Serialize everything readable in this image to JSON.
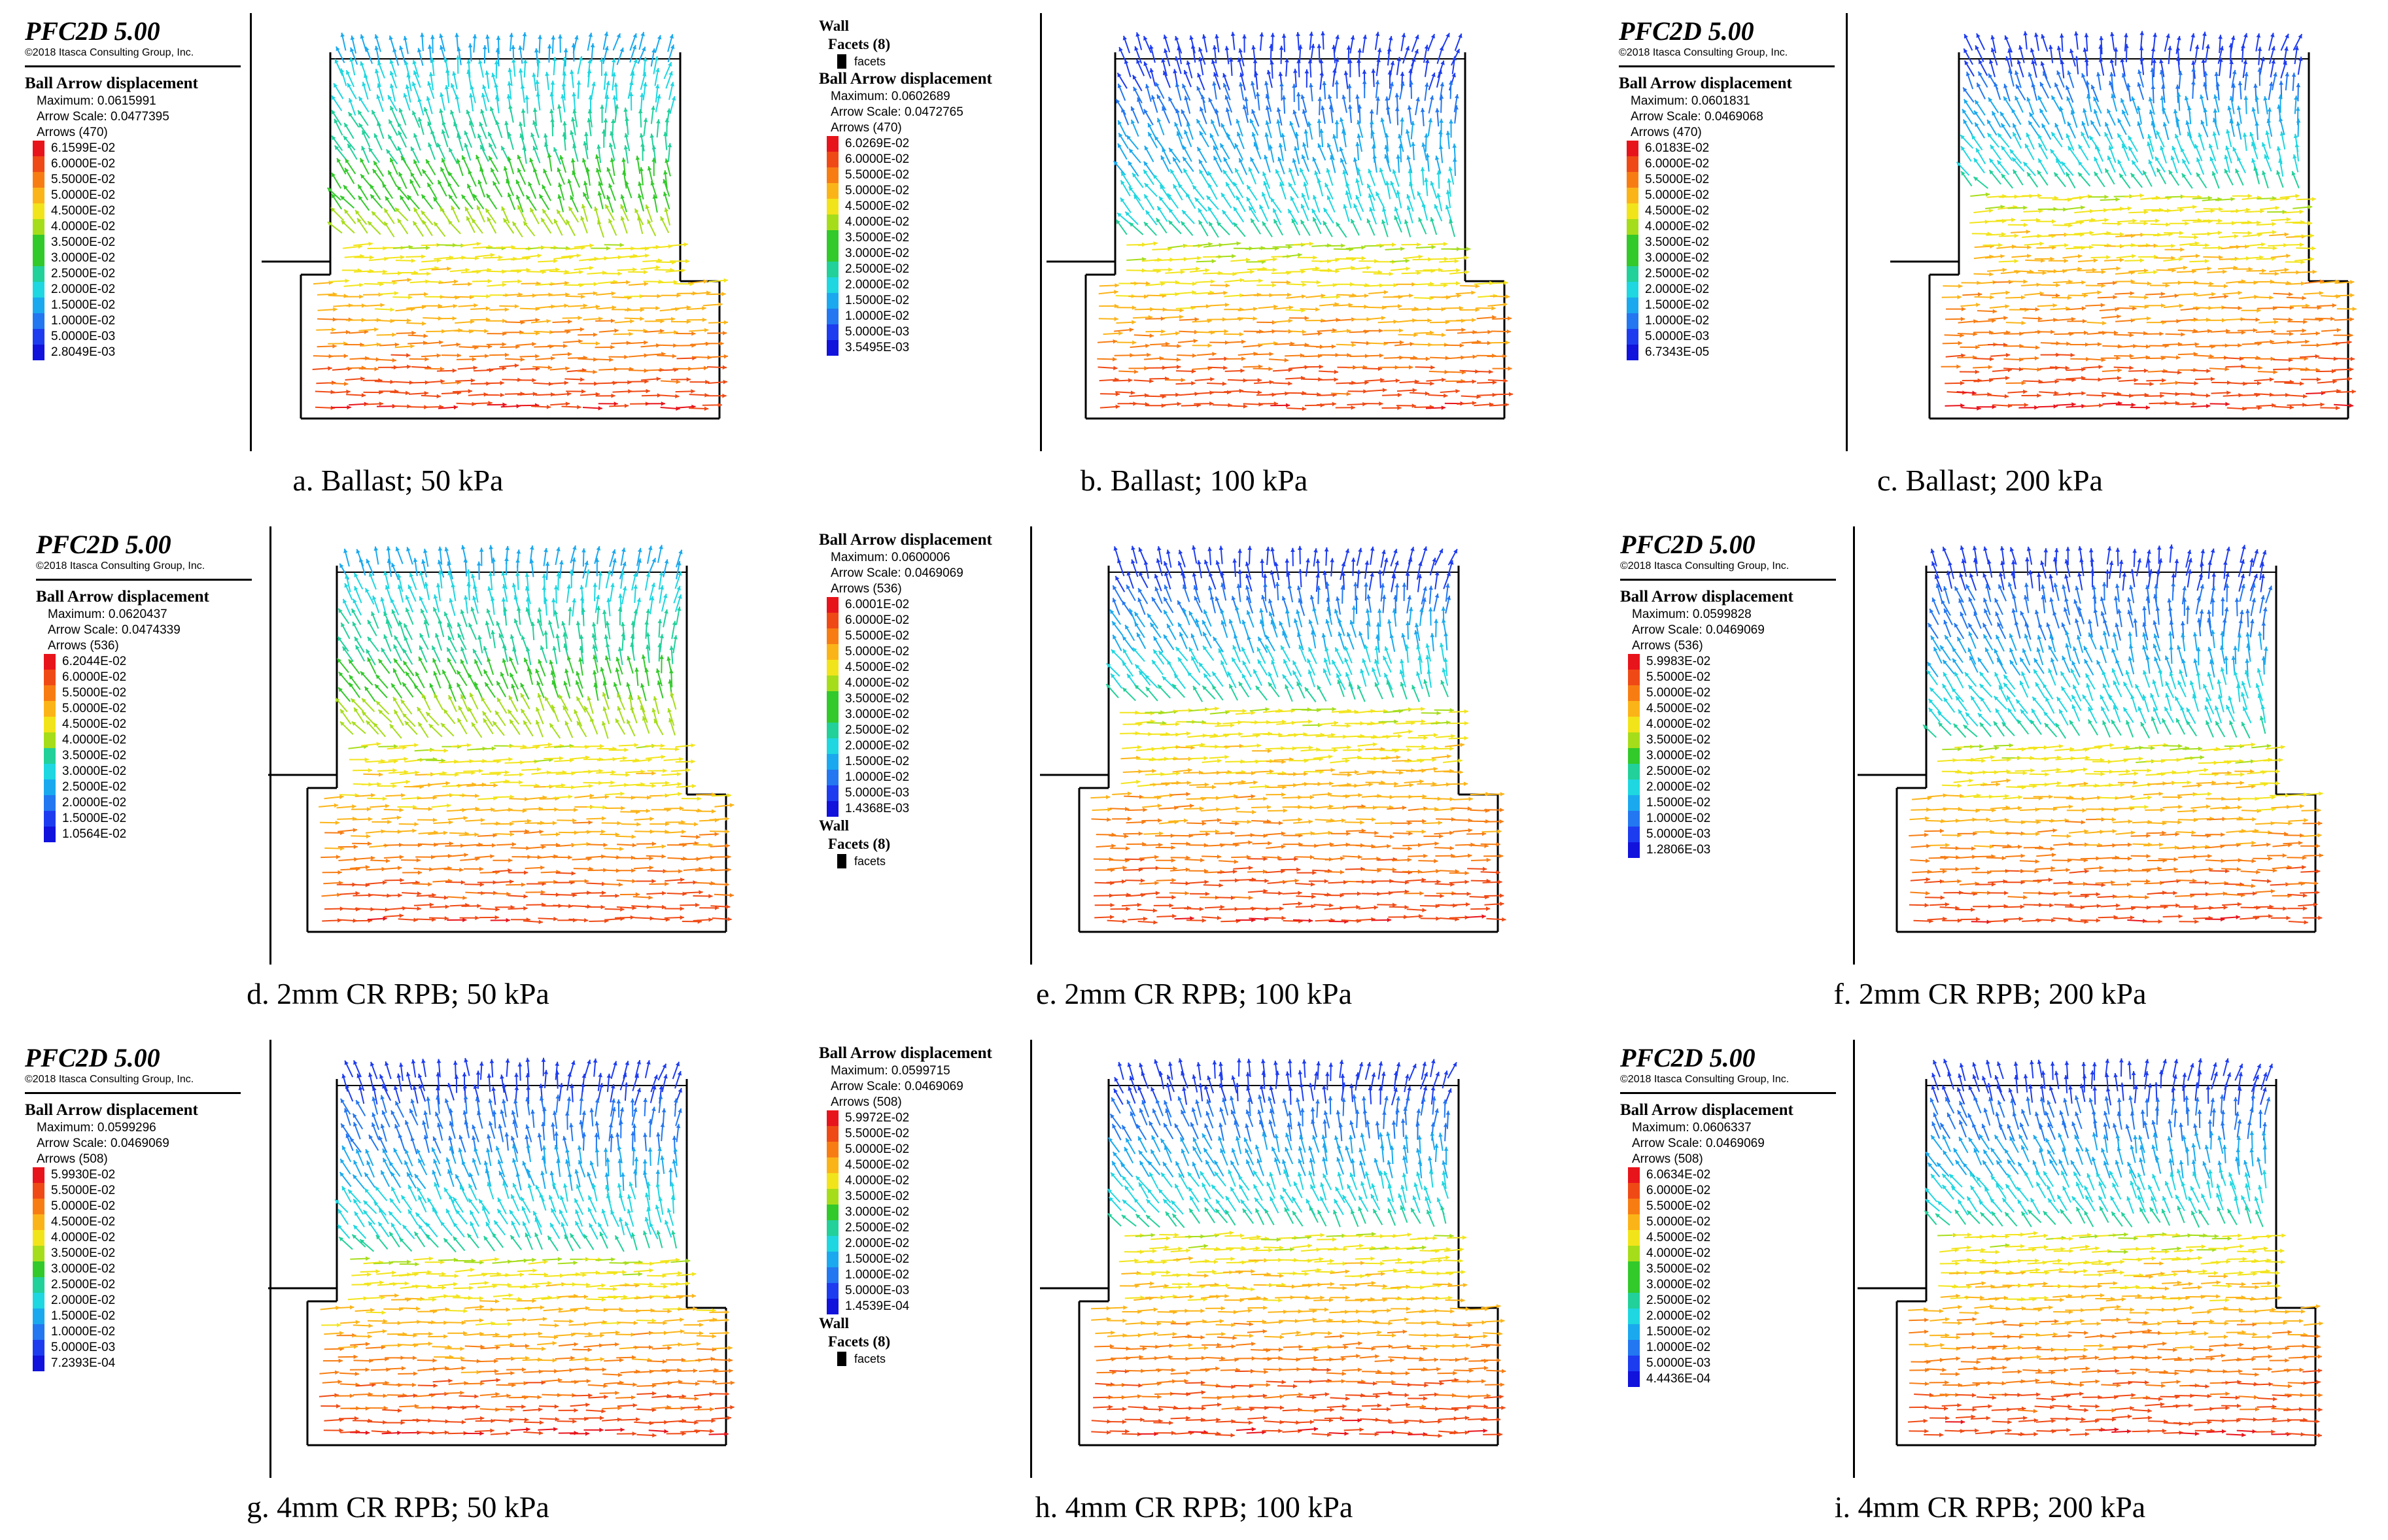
{
  "colors": {
    "ramp": [
      "#e8141b",
      "#ef4a15",
      "#f77d13",
      "#fbb418",
      "#f2e41a",
      "#a6dd1a",
      "#32c92a",
      "#22d09a",
      "#1ed7e0",
      "#1aa9ee",
      "#2377f0",
      "#1d3cf0",
      "#1112dc"
    ]
  },
  "panels": [
    {
      "id": "a",
      "caption": "a. Ballast; 50 kPa",
      "logo": "PFC2D 5.00",
      "copyright": "©2018 Itasca Consulting Group, Inc.",
      "legend_title": "Ball Arrow displacement",
      "maximum": "Maximum: 0.0615991",
      "arrow_scale": "Arrow Scale: 0.0477395",
      "arrows": "Arrows (470)",
      "scale": [
        "6.1599E-02",
        "6.0000E-02",
        "5.5000E-02",
        "5.0000E-02",
        "4.5000E-02",
        "4.0000E-02",
        "3.5000E-02",
        "3.0000E-02",
        "2.5000E-02",
        "2.0000E-02",
        "1.5000E-02",
        "1.0000E-02",
        "5.0000E-03",
        "2.8049E-03"
      ]
    },
    {
      "id": "b",
      "caption": "b. Ballast; 100 kPa",
      "wall": {
        "title": "Wall",
        "facets": "Facets (8)",
        "label": "facets"
      },
      "legend_title": "Ball Arrow displacement",
      "maximum": "Maximum: 0.0602689",
      "arrow_scale": "Arrow Scale: 0.0472765",
      "arrows": "Arrows (470)",
      "scale": [
        "6.0269E-02",
        "6.0000E-02",
        "5.5000E-02",
        "5.0000E-02",
        "4.5000E-02",
        "4.0000E-02",
        "3.5000E-02",
        "3.0000E-02",
        "2.5000E-02",
        "2.0000E-02",
        "1.5000E-02",
        "1.0000E-02",
        "5.0000E-03",
        "3.5495E-03"
      ]
    },
    {
      "id": "c",
      "caption": "c. Ballast; 200 kPa",
      "logo": "PFC2D 5.00",
      "copyright": "©2018 Itasca Consulting Group, Inc.",
      "legend_title": "Ball Arrow displacement",
      "maximum": "Maximum: 0.0601831",
      "arrow_scale": "Arrow Scale: 0.0469068",
      "arrows": "Arrows (470)",
      "scale": [
        "6.0183E-02",
        "6.0000E-02",
        "5.5000E-02",
        "5.0000E-02",
        "4.5000E-02",
        "4.0000E-02",
        "3.5000E-02",
        "3.0000E-02",
        "2.5000E-02",
        "2.0000E-02",
        "1.5000E-02",
        "1.0000E-02",
        "5.0000E-03",
        "6.7343E-05"
      ]
    },
    {
      "id": "d",
      "caption": "d. 2mm CR RPB; 50 kPa",
      "logo": "PFC2D 5.00",
      "copyright": "©2018 Itasca Consulting Group, Inc.",
      "legend_title": "Ball Arrow displacement",
      "maximum": "Maximum: 0.0620437",
      "arrow_scale": "Arrow Scale: 0.0474339",
      "arrows": "Arrows (536)",
      "scale": [
        "6.2044E-02",
        "6.0000E-02",
        "5.5000E-02",
        "5.0000E-02",
        "4.5000E-02",
        "4.0000E-02",
        "3.5000E-02",
        "3.0000E-02",
        "2.5000E-02",
        "2.0000E-02",
        "1.5000E-02",
        "1.0564E-02"
      ]
    },
    {
      "id": "e",
      "caption": "e. 2mm CR RPB; 100 kPa",
      "legend_title": "Ball Arrow displacement",
      "maximum": "Maximum: 0.0600006",
      "arrow_scale": "Arrow Scale: 0.0469069",
      "arrows": "Arrows (536)",
      "scale": [
        "6.0001E-02",
        "6.0000E-02",
        "5.5000E-02",
        "5.0000E-02",
        "4.5000E-02",
        "4.0000E-02",
        "3.5000E-02",
        "3.0000E-02",
        "2.5000E-02",
        "2.0000E-02",
        "1.5000E-02",
        "1.0000E-02",
        "5.0000E-03",
        "1.4368E-03"
      ],
      "wall": {
        "title": "Wall",
        "facets": "Facets (8)",
        "label": "facets"
      }
    },
    {
      "id": "f",
      "caption": "f. 2mm CR RPB; 200 kPa",
      "logo": "PFC2D 5.00",
      "copyright": "©2018 Itasca Consulting Group, Inc.",
      "legend_title": "Ball Arrow displacement",
      "maximum": "Maximum: 0.0599828",
      "arrow_scale": "Arrow Scale: 0.0469069",
      "arrows": "Arrows (536)",
      "scale": [
        "5.9983E-02",
        "5.5000E-02",
        "5.0000E-02",
        "4.5000E-02",
        "4.0000E-02",
        "3.5000E-02",
        "3.0000E-02",
        "2.5000E-02",
        "2.0000E-02",
        "1.5000E-02",
        "1.0000E-02",
        "5.0000E-03",
        "1.2806E-03"
      ]
    },
    {
      "id": "g",
      "caption": "g. 4mm CR RPB; 50 kPa",
      "logo": "PFC2D 5.00",
      "copyright": "©2018 Itasca Consulting Group, Inc.",
      "legend_title": "Ball Arrow displacement",
      "maximum": "Maximum: 0.0599296",
      "arrow_scale": "Arrow Scale: 0.0469069",
      "arrows": "Arrows (508)",
      "scale": [
        "5.9930E-02",
        "5.5000E-02",
        "5.0000E-02",
        "4.5000E-02",
        "4.0000E-02",
        "3.5000E-02",
        "3.0000E-02",
        "2.5000E-02",
        "2.0000E-02",
        "1.5000E-02",
        "1.0000E-02",
        "5.0000E-03",
        "7.2393E-04"
      ]
    },
    {
      "id": "h",
      "caption": "h. 4mm CR RPB; 100 kPa",
      "legend_title": "Ball Arrow displacement",
      "maximum": "Maximum: 0.0599715",
      "arrow_scale": "Arrow Scale: 0.0469069",
      "arrows": "Arrows (508)",
      "scale": [
        "5.9972E-02",
        "5.5000E-02",
        "5.0000E-02",
        "4.5000E-02",
        "4.0000E-02",
        "3.5000E-02",
        "3.0000E-02",
        "2.5000E-02",
        "2.0000E-02",
        "1.5000E-02",
        "1.0000E-02",
        "5.0000E-03",
        "1.4539E-04"
      ],
      "wall": {
        "title": "Wall",
        "facets": "Facets (8)",
        "label": "facets"
      }
    },
    {
      "id": "i",
      "caption": "i. 4mm CR RPB; 200 kPa",
      "logo": "PFC2D 5.00",
      "copyright": "©2018 Itasca Consulting Group, Inc.",
      "legend_title": "Ball Arrow displacement",
      "maximum": "Maximum: 0.0606337",
      "arrow_scale": "Arrow Scale: 0.0469069",
      "arrows": "Arrows (508)",
      "scale": [
        "6.0634E-02",
        "6.0000E-02",
        "5.5000E-02",
        "5.0000E-02",
        "4.5000E-02",
        "4.0000E-02",
        "3.5000E-02",
        "3.0000E-02",
        "2.5000E-02",
        "2.0000E-02",
        "1.5000E-02",
        "1.0000E-02",
        "5.0000E-03",
        "4.4436E-04"
      ]
    }
  ]
}
